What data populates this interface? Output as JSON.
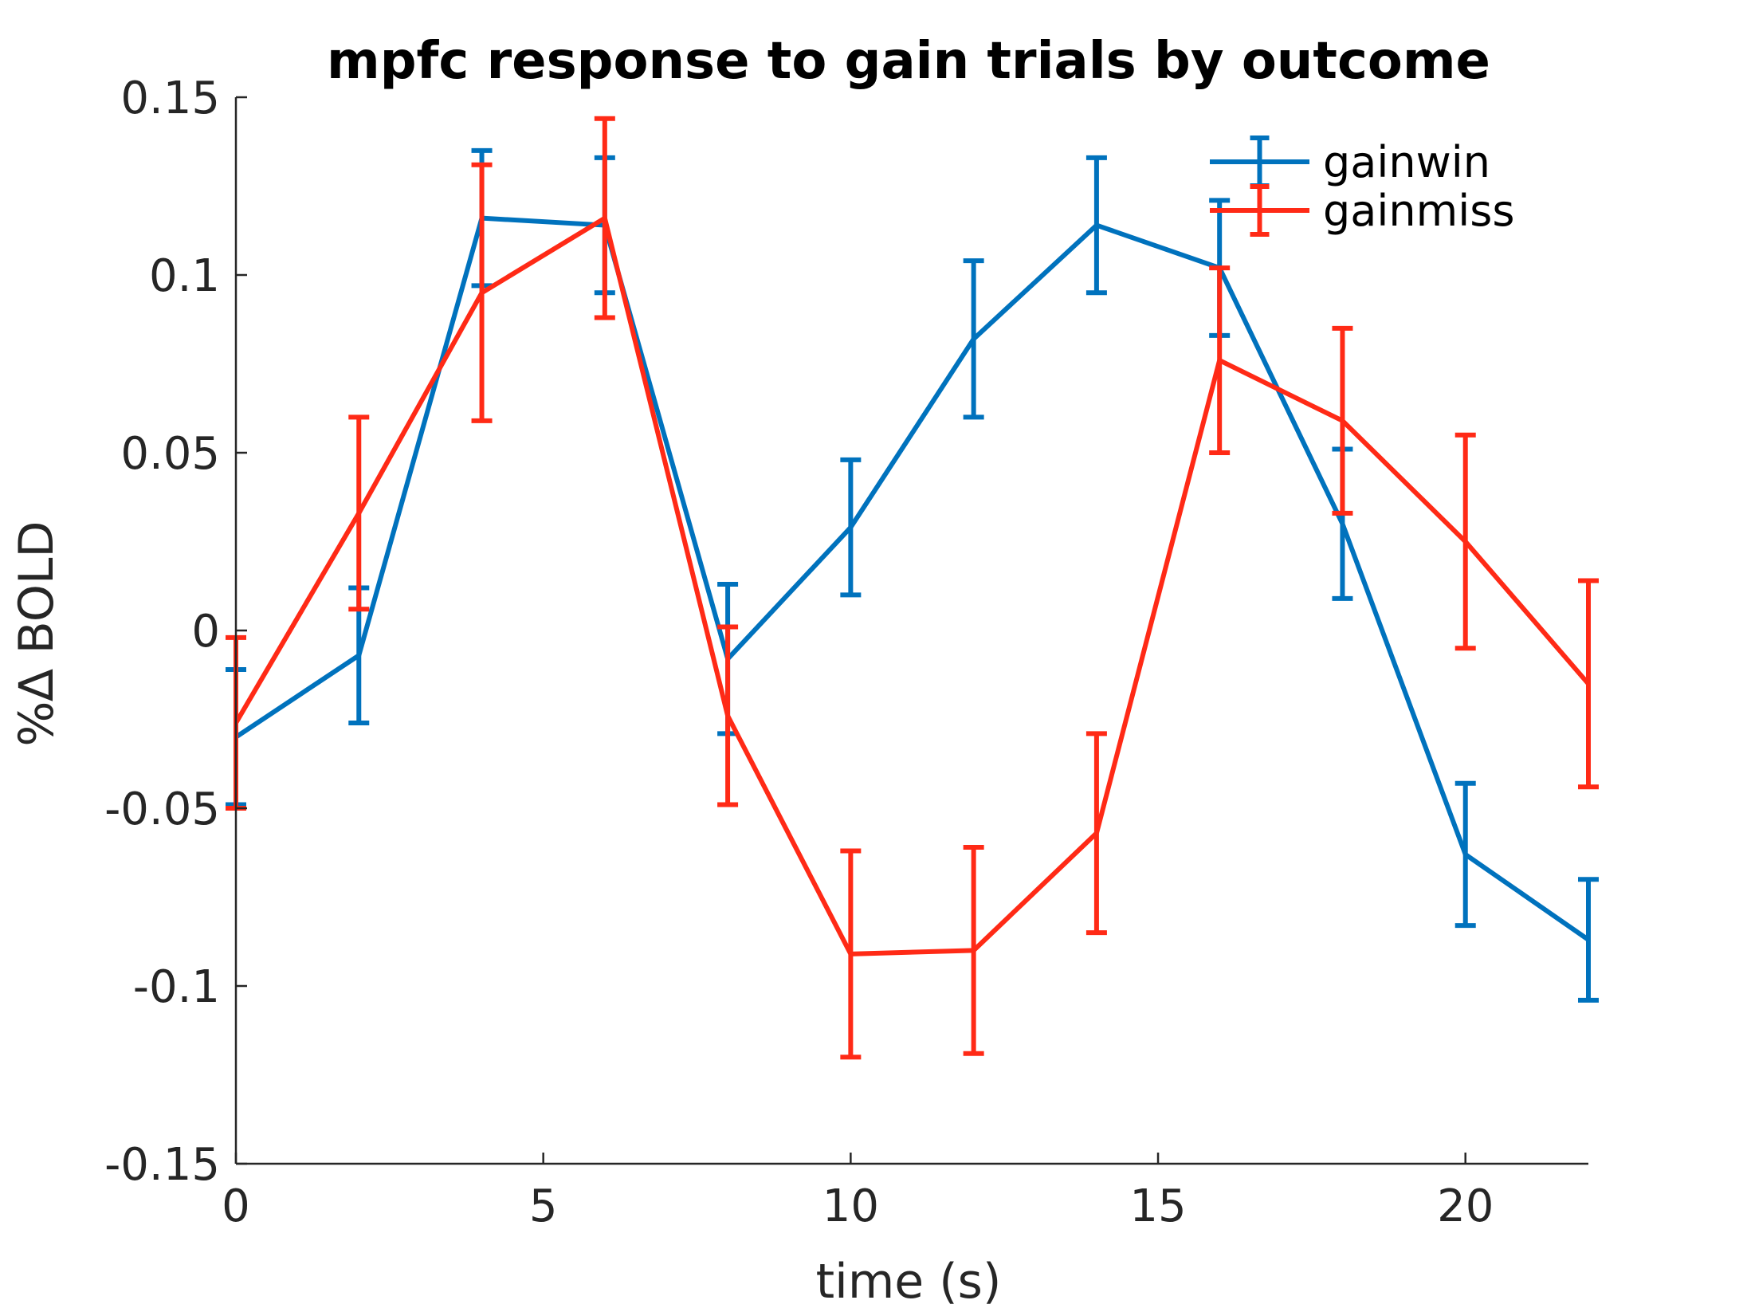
{
  "chart_data": {
    "type": "line",
    "title": "mpfc response to gain trials by outcome",
    "xlabel": "time (s)",
    "ylabel": "%∆ BOLD",
    "xlim": [
      0,
      22
    ],
    "ylim": [
      -0.15,
      0.15
    ],
    "xticks": [
      0,
      5,
      10,
      15,
      20
    ],
    "xtick_labels": [
      "0",
      "5",
      "10",
      "15",
      "20"
    ],
    "yticks": [
      -0.15,
      -0.1,
      -0.05,
      0,
      0.05,
      0.1,
      0.15
    ],
    "ytick_labels": [
      "-0.15",
      "-0.1",
      "-0.05",
      "0",
      "0.05",
      "0.1",
      "0.15"
    ],
    "grid": false,
    "legend_position": "top-right",
    "x": [
      0,
      2,
      4,
      6,
      8,
      10,
      12,
      14,
      16,
      18,
      20,
      22
    ],
    "series": [
      {
        "name": "gainwin",
        "color": "#0072bd",
        "values": [
          -0.03,
          -0.007,
          0.116,
          0.114,
          -0.008,
          0.029,
          0.082,
          0.114,
          0.102,
          0.03,
          -0.063,
          -0.087
        ],
        "error": [
          0.019,
          0.019,
          0.019,
          0.019,
          0.021,
          0.019,
          0.022,
          0.019,
          0.019,
          0.021,
          0.02,
          0.017
        ]
      },
      {
        "name": "gainmiss",
        "color": "#ff2a16",
        "values": [
          -0.026,
          0.033,
          0.095,
          0.116,
          -0.024,
          -0.091,
          -0.09,
          -0.057,
          0.076,
          0.059,
          0.025,
          -0.015
        ],
        "error": [
          0.024,
          0.027,
          0.036,
          0.028,
          0.025,
          0.029,
          0.029,
          0.028,
          0.026,
          0.026,
          0.03,
          0.029
        ]
      }
    ]
  }
}
